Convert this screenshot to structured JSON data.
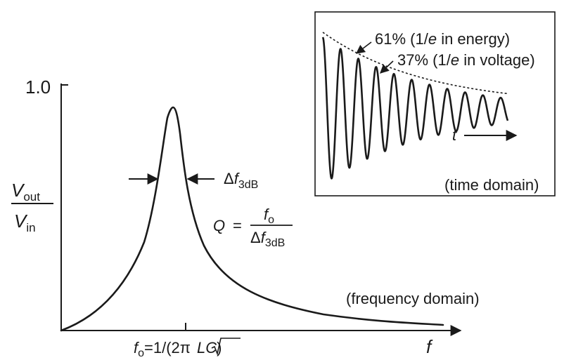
{
  "figure": {
    "y_axis_top_label": "1.0",
    "y_axis_label": {
      "numerator": {
        "symbol": "V",
        "subscript": "out"
      },
      "denominator": {
        "symbol": "V",
        "subscript": "in"
      }
    },
    "x_axis_label": "f",
    "center_frequency_label": {
      "symbol": "f",
      "subscript": "o",
      "expression_prefix": "=1/(2π",
      "sqrt_argument": "LC",
      "expression_suffix": ")"
    },
    "bandwidth_label": {
      "prefix": "Δ",
      "symbol": "f",
      "subscript": "3dB"
    },
    "q_formula": {
      "lhs": "Q",
      "equals": "=",
      "numerator": {
        "symbol": "f",
        "subscript": "o"
      },
      "denominator": {
        "prefix": "Δ",
        "symbol": "f",
        "subscript": "3dB"
      }
    },
    "frequency_domain_caption": "(frequency domain)",
    "inset": {
      "caption": "(time domain)",
      "time_axis_label": "t",
      "annotation_energy": {
        "pre": "61% (1/",
        "e": "e",
        "post": " in energy)"
      },
      "annotation_voltage": {
        "pre": "37% (1/",
        "e": "e",
        "post": " in voltage)"
      }
    },
    "colors": {
      "ink": "#1a1a1a",
      "background": "#ffffff"
    }
  }
}
